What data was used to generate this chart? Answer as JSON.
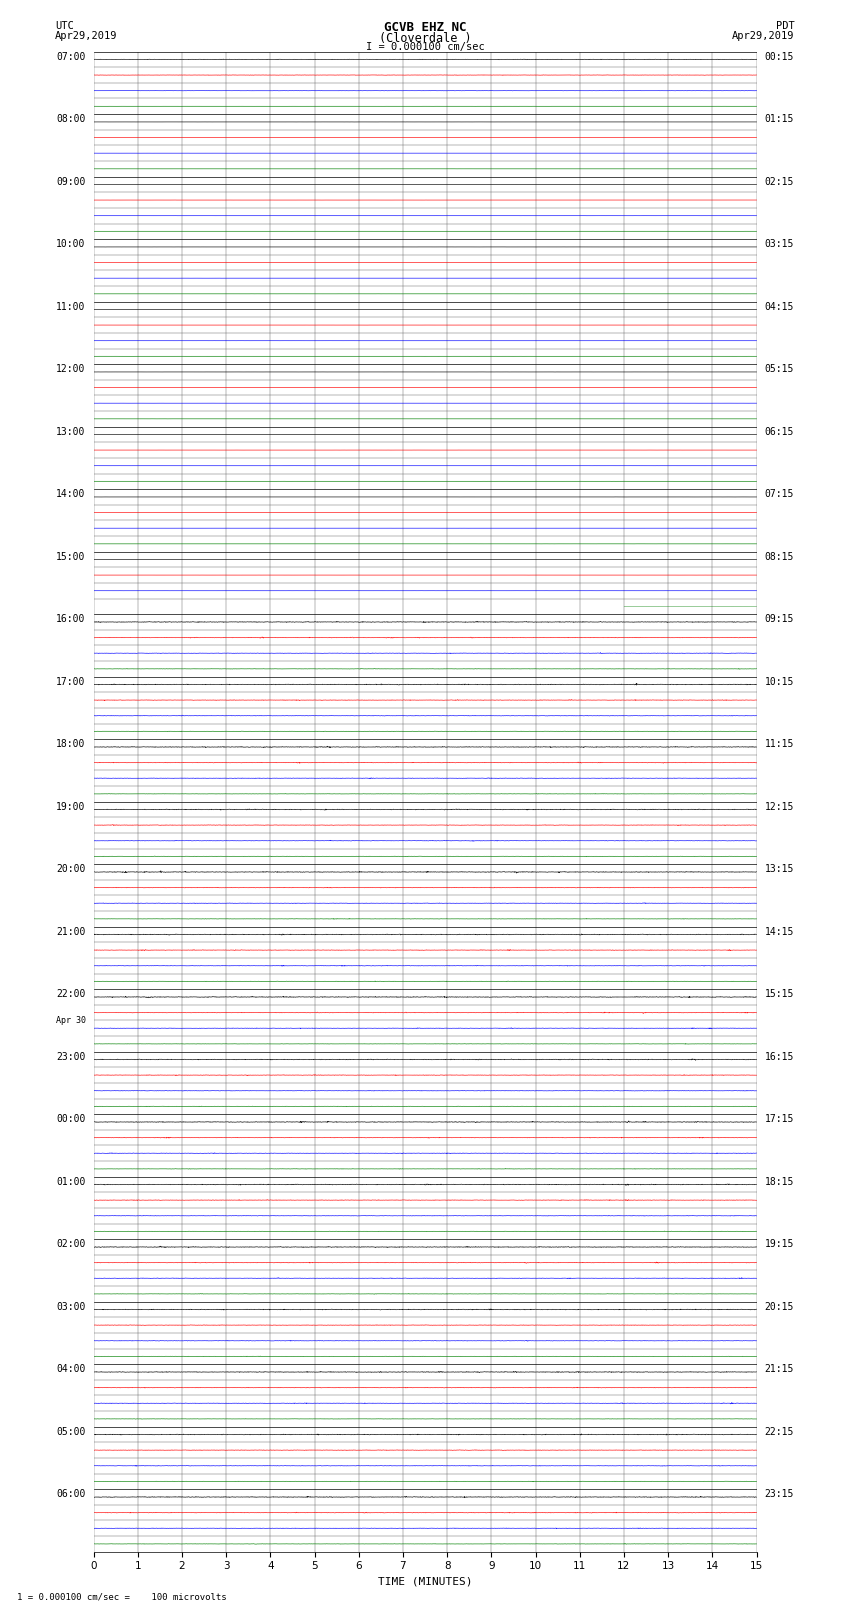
{
  "title_line1": "GCVB EHZ NC",
  "title_line2": "(Cloverdale )",
  "scale_text": "I = 0.000100 cm/sec",
  "footer_text": "1 = 0.000100 cm/sec =    100 microvolts",
  "left_label": "UTC",
  "left_date": "Apr29,2019",
  "right_label": "PDT",
  "right_date": "Apr29,2019",
  "xlabel": "TIME (MINUTES)",
  "xlim": [
    0,
    15
  ],
  "xticks": [
    0,
    1,
    2,
    3,
    4,
    5,
    6,
    7,
    8,
    9,
    10,
    11,
    12,
    13,
    14,
    15
  ],
  "left_times": [
    "07:00",
    "08:00",
    "09:00",
    "10:00",
    "11:00",
    "12:00",
    "13:00",
    "14:00",
    "15:00",
    "16:00",
    "17:00",
    "18:00",
    "19:00",
    "20:00",
    "21:00",
    "22:00",
    "23:00",
    "00:00",
    "01:00",
    "02:00",
    "03:00",
    "04:00",
    "05:00",
    "06:00"
  ],
  "apr30_row": 16,
  "right_times": [
    "00:15",
    "01:15",
    "02:15",
    "03:15",
    "04:15",
    "05:15",
    "06:15",
    "07:15",
    "08:15",
    "09:15",
    "10:15",
    "11:15",
    "12:15",
    "13:15",
    "14:15",
    "15:15",
    "16:15",
    "17:15",
    "18:15",
    "19:15",
    "20:15",
    "21:15",
    "22:15",
    "23:15"
  ],
  "num_hour_rows": 24,
  "traces_per_hour": 4,
  "trace_colors": [
    "black",
    "red",
    "blue",
    "green"
  ],
  "bg_color": "white",
  "grid_color_major": "#000000",
  "grid_color_minor": "#888888",
  "line_width": 0.5,
  "quiet_rows": 8,
  "quiet_amp": 0.003,
  "active_amp_black": 0.012,
  "active_amp_red": 0.008,
  "active_amp_blue": 0.007,
  "active_amp_green": 0.005,
  "first_row_amp_black": 0.008,
  "first_row_amp_red": 0.006,
  "first_row_amp_blue": 0.004,
  "special_green_row": 8,
  "special_green_amp": 0.003
}
